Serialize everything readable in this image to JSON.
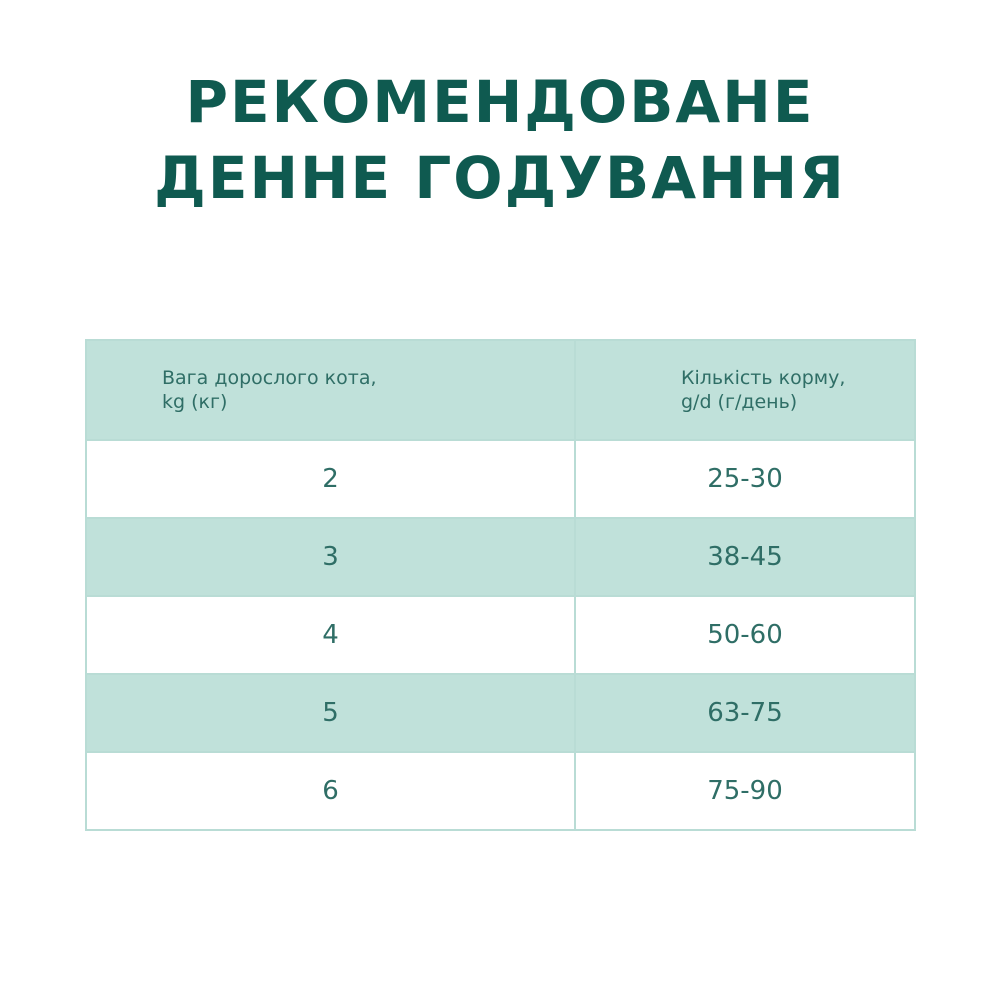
{
  "title": {
    "line1": "РЕКОМЕНДОВАНЕ",
    "line2": "ДЕННЕ ГОДУВАННЯ"
  },
  "table": {
    "headers": [
      {
        "line1": "Вага дорослого кота,",
        "line2": "kg (кг)"
      },
      {
        "line1": "Кількість корму,",
        "line2": "g/d (г/день)"
      }
    ],
    "rows": [
      {
        "weight": "2",
        "amount": "25-30"
      },
      {
        "weight": "3",
        "amount": "38-45"
      },
      {
        "weight": "4",
        "amount": "50-60"
      },
      {
        "weight": "5",
        "amount": "63-75"
      },
      {
        "weight": "6",
        "amount": "75-90"
      }
    ]
  },
  "colors": {
    "title": "#0f5a50",
    "text": "#2f6e66",
    "stripe": "#c0e1da"
  }
}
